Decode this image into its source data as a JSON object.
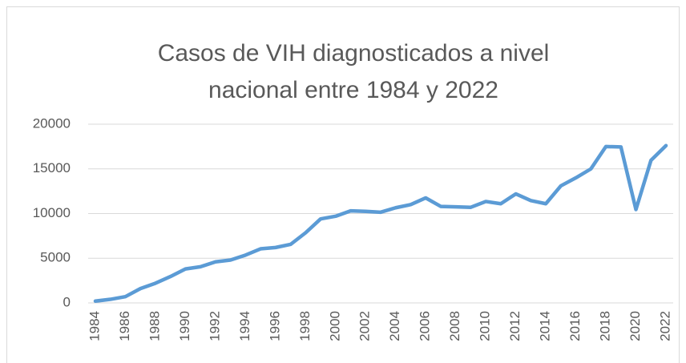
{
  "chart_data": {
    "type": "line",
    "title": "Casos de VIH diagnosticados a nivel nacional entre 1984 y 2022",
    "categories": [
      "1984",
      null,
      "1986",
      null,
      "1988",
      null,
      "1990",
      null,
      "1992",
      null,
      "1994",
      null,
      "1996",
      null,
      "1998",
      null,
      "2000",
      null,
      "2002",
      null,
      "2004",
      null,
      "2006",
      null,
      "2008",
      null,
      "2010",
      null,
      "2012",
      null,
      "2014",
      null,
      "2016",
      null,
      "2018",
      null,
      "2020",
      null,
      "2022"
    ],
    "values": [
      200,
      400,
      700,
      1600,
      2200,
      2950,
      3800,
      4050,
      4600,
      4800,
      5350,
      6050,
      6200,
      6550,
      7850,
      9400,
      9700,
      10300,
      10250,
      10150,
      10650,
      11000,
      11750,
      10800,
      10750,
      10700,
      11350,
      11100,
      12200,
      11450,
      11100,
      13100,
      14000,
      15000,
      17500,
      17450,
      10450,
      15950,
      17600
    ],
    "color": "#5b9bd5",
    "ylim": [
      0,
      20000
    ],
    "yticks": [
      0,
      5000,
      10000,
      15000,
      20000
    ],
    "grid": true
  }
}
